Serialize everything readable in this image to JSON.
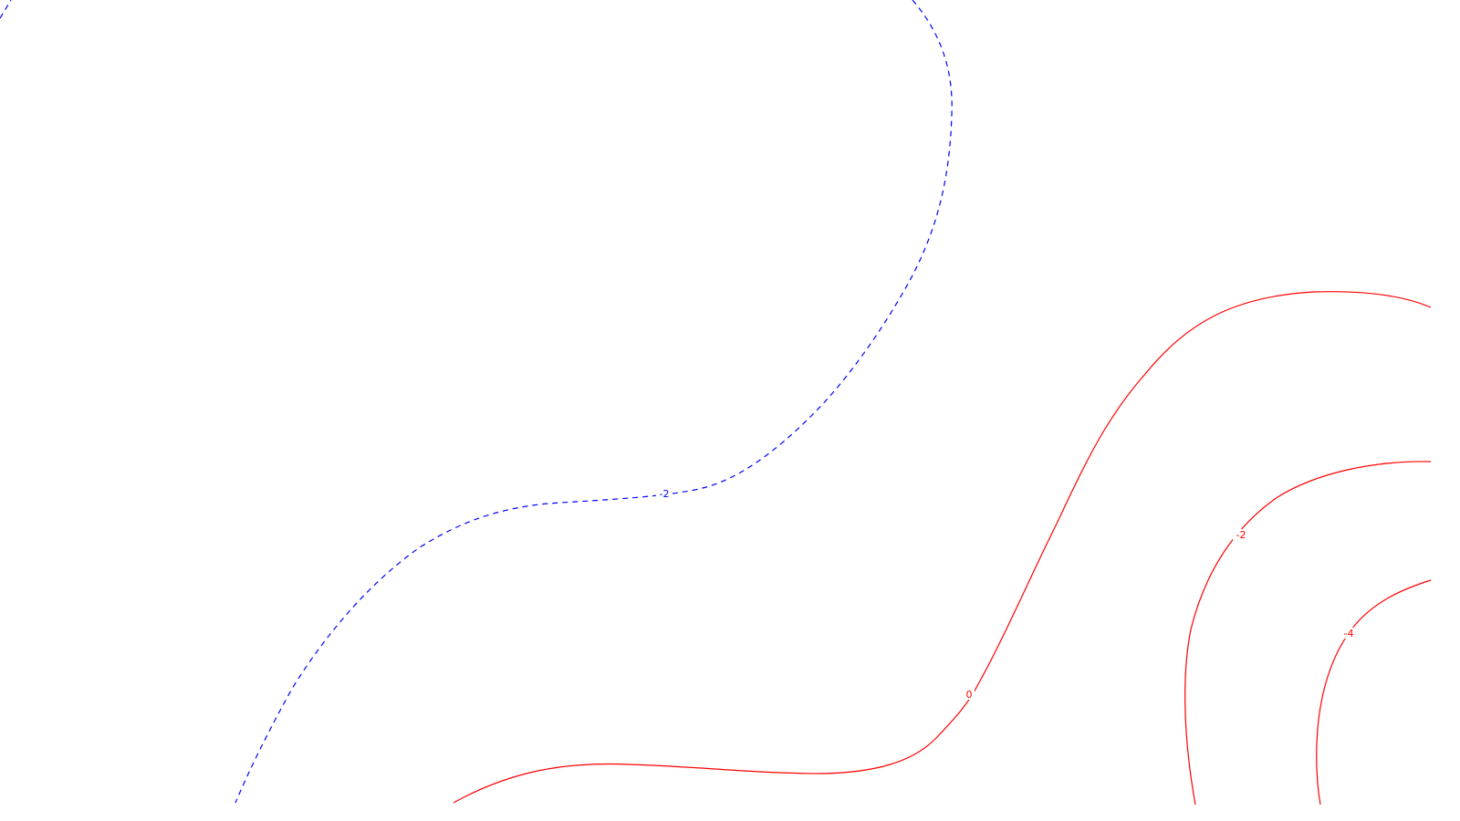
{
  "chart_data": {
    "type": "contour",
    "title": "",
    "xlabel": "",
    "ylabel": "",
    "grid": false,
    "colors": {
      "negative": "#0000ff",
      "positive": "#ff0000"
    },
    "contours": [
      {
        "id": "blue-level",
        "level_label": "-2",
        "line_style": "dashed",
        "color": "#0000ff"
      },
      {
        "id": "red-level-0",
        "level_label": "0",
        "line_style": "solid",
        "color": "#ff0000"
      },
      {
        "id": "red-level-neg2",
        "level_label": "-2",
        "line_style": "solid",
        "color": "#ff0000"
      },
      {
        "id": "red-level-neg4",
        "level_label": "-4",
        "line_style": "solid",
        "color": "#ff0000"
      }
    ]
  }
}
